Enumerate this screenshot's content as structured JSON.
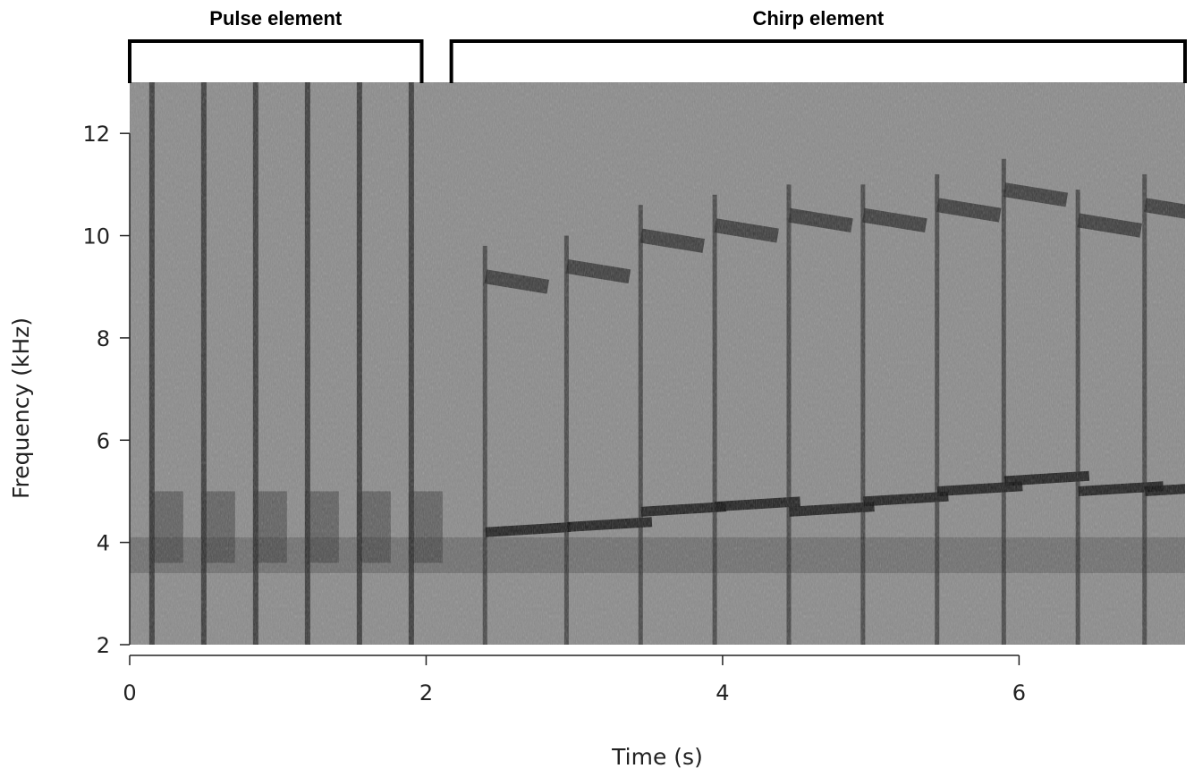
{
  "chart_data": {
    "type": "heatmap",
    "subtype": "spectrogram",
    "colormap": "grayscale (dark = high energy)",
    "xlabel": "Time (s)",
    "ylabel": "Frequency (kHz)",
    "xlim": [
      0,
      7.12
    ],
    "ylim": [
      2,
      13
    ],
    "xticks": [
      0,
      2,
      4,
      6
    ],
    "yticks": [
      2,
      4,
      6,
      8,
      10,
      12
    ],
    "grid": false,
    "segments": [
      {
        "label": "Pulse element",
        "start": 0.0,
        "end": 1.97
      },
      {
        "label": "Chirp element",
        "start": 2.17,
        "end": 7.12
      }
    ],
    "pulse_times": [
      0.15,
      0.5,
      0.85,
      1.2,
      1.55,
      1.9
    ],
    "pulse_band": {
      "low": 3.6,
      "high": 5.0
    },
    "chirps": [
      {
        "t": 2.4,
        "low": 4.2,
        "high": 9.2
      },
      {
        "t": 2.95,
        "low": 4.3,
        "high": 9.4
      },
      {
        "t": 3.45,
        "low": 4.6,
        "high": 10.0
      },
      {
        "t": 3.95,
        "low": 4.7,
        "high": 10.2
      },
      {
        "t": 4.45,
        "low": 4.6,
        "high": 10.4
      },
      {
        "t": 4.95,
        "low": 4.8,
        "high": 10.4
      },
      {
        "t": 5.45,
        "low": 5.0,
        "high": 10.6
      },
      {
        "t": 5.9,
        "low": 5.2,
        "high": 10.9
      },
      {
        "t": 6.4,
        "low": 5.0,
        "high": 10.3
      },
      {
        "t": 6.85,
        "low": 5.0,
        "high": 10.6
      }
    ]
  }
}
